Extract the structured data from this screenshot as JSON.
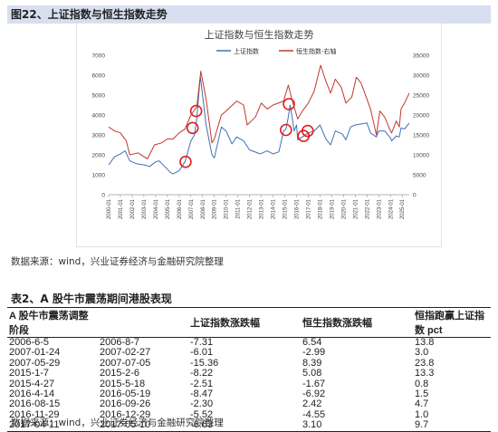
{
  "figure": {
    "title": "图22、上证指数与恒生指数走势"
  },
  "source1": "数据来源：wind，兴业证券经济与金融研究院整理",
  "table": {
    "title": "表2、A 股牛市震荡期间港股表现",
    "headers": [
      "A 股牛市震荡调整阶段",
      "",
      "上证指数涨跌幅",
      "恒生指数涨跌幅",
      "恒指跑赢上证指数  pct"
    ],
    "rows": [
      [
        "2006-6-5",
        "2006-8-7",
        "-7.31",
        "6.54",
        "13.8"
      ],
      [
        "2007-01-24",
        "2007-02-27",
        "-6.01",
        "-2.99",
        "3.0"
      ],
      [
        "2007-05-29",
        "2007-07-05",
        "-15.36",
        "8.39",
        "23.8"
      ],
      [
        "2015-1-7",
        "2015-2-6",
        "-8.22",
        "5.08",
        "13.3"
      ],
      [
        "2015-4-27",
        "2015-5-18",
        "-2.51",
        "-1.67",
        "0.8"
      ],
      [
        "2016-4-14",
        "2016-05-19",
        "-8.47",
        "-6.92",
        "1.5"
      ],
      [
        "2016-08-15",
        "2016-09-26",
        "-2.30",
        "2.42",
        "4.7"
      ],
      [
        "2016-11-29",
        "2016-12-29",
        "-5.52",
        "-4.55",
        "1.0"
      ],
      [
        "2017-04-11",
        "2017-05-10",
        "-6.63",
        "3.10",
        "9.7"
      ]
    ]
  },
  "source2": "数据来源：wind，兴业证券经济与金融研究院整理",
  "colors": {
    "sse": "#3f6fb5",
    "hsi": "#c0392b",
    "circle": "#e02020"
  },
  "chart_data": {
    "type": "line",
    "title": "上证指数与恒生指数走势",
    "legend": [
      "上证指数",
      "恒生指数-右轴"
    ],
    "legend_placement": "top-center",
    "grid": false,
    "x_ticks": [
      "2000-01",
      "2001-01",
      "2002-01",
      "2003-01",
      "2004-01",
      "2005-01",
      "2006-01",
      "2007-01",
      "2008-01",
      "2009-01",
      "2010-01",
      "2011-01",
      "2012-01",
      "2013-01",
      "2014-01",
      "2015-01",
      "2016-01",
      "2017-01",
      "2018-01",
      "2019-01",
      "2020-01",
      "2021-01",
      "2022-01",
      "2023-01",
      "2024-01",
      "2025-01"
    ],
    "y_left_ticks": [
      "0",
      "1000",
      "2000",
      "3000",
      "4000",
      "5000",
      "6000",
      "7000"
    ],
    "y_right_ticks": [
      "0",
      "5000",
      "10000",
      "15000",
      "20000",
      "25000",
      "30000",
      "35000"
    ],
    "ylim_left": [
      0,
      7000
    ],
    "ylim_right": [
      0,
      35000
    ],
    "series": [
      {
        "name": "上证指数",
        "axis": "left",
        "x": [
          2000.0,
          2000.5,
          2001.0,
          2001.4,
          2001.8,
          2002.4,
          2003.0,
          2003.5,
          2004.0,
          2004.3,
          2004.8,
          2005.3,
          2005.5,
          2006.0,
          2006.5,
          2007.0,
          2007.3,
          2007.5,
          2007.8,
          2008.3,
          2008.8,
          2009.0,
          2009.6,
          2010.0,
          2010.5,
          2010.9,
          2011.5,
          2012.0,
          2012.9,
          2013.5,
          2014.0,
          2014.5,
          2014.9,
          2015.1,
          2015.3,
          2015.45,
          2015.6,
          2015.8,
          2016.0,
          2016.1,
          2016.5,
          2017.0,
          2017.5,
          2018.0,
          2018.5,
          2018.9,
          2019.3,
          2019.9,
          2020.2,
          2020.6,
          2021.0,
          2021.5,
          2022.0,
          2022.3,
          2022.8,
          2023.0,
          2023.5,
          2024.0,
          2024.1,
          2024.5,
          2024.75,
          2024.9,
          2025.2,
          2025.6
        ],
        "y": [
          1500,
          1900,
          2050,
          2200,
          1700,
          1550,
          1500,
          1420,
          1650,
          1700,
          1400,
          1100,
          1050,
          1200,
          1650,
          2700,
          3000,
          3800,
          5950,
          3500,
          2000,
          1850,
          3400,
          3200,
          2550,
          2900,
          2700,
          2250,
          2050,
          2200,
          2050,
          2150,
          3200,
          3300,
          3900,
          4500,
          4000,
          3200,
          3500,
          2750,
          2900,
          3100,
          3200,
          3500,
          2800,
          2500,
          3200,
          3050,
          2750,
          3400,
          3500,
          3550,
          3600,
          3100,
          2900,
          3200,
          3200,
          2850,
          2700,
          2950,
          2900,
          3350,
          3300,
          3600
        ]
      },
      {
        "name": "恒生指数-右轴",
        "axis": "right",
        "x": [
          2000.0,
          2000.5,
          2001.0,
          2001.5,
          2001.8,
          2002.5,
          2003.3,
          2003.9,
          2004.5,
          2005.0,
          2005.5,
          2006.0,
          2006.5,
          2007.0,
          2007.5,
          2007.85,
          2008.3,
          2008.8,
          2009.0,
          2009.6,
          2010.0,
          2010.9,
          2011.5,
          2011.8,
          2012.5,
          2013.0,
          2013.5,
          2014.0,
          2014.9,
          2015.3,
          2015.6,
          2016.1,
          2016.5,
          2017.0,
          2017.5,
          2018.05,
          2018.5,
          2018.9,
          2019.3,
          2019.8,
          2020.2,
          2020.7,
          2021.1,
          2021.5,
          2022.0,
          2022.3,
          2022.8,
          2023.1,
          2023.5,
          2024.0,
          2024.1,
          2024.5,
          2024.75,
          2024.9,
          2025.2,
          2025.6
        ],
        "y": [
          17000,
          16000,
          15500,
          13500,
          10000,
          10500,
          9000,
          12500,
          13000,
          14000,
          14000,
          15500,
          16500,
          20000,
          22000,
          31000,
          24000,
          13000,
          14000,
          20000,
          21000,
          23500,
          22500,
          17500,
          19500,
          23000,
          21500,
          22500,
          23500,
          27500,
          24000,
          19000,
          21000,
          23000,
          26000,
          32500,
          28500,
          25500,
          29000,
          27000,
          23000,
          24500,
          29500,
          28000,
          24000,
          21500,
          15000,
          21000,
          19500,
          16000,
          15500,
          18500,
          17000,
          21500,
          23000,
          25500
        ]
      }
    ],
    "annotations": [
      {
        "label": "circle",
        "x": 2006.55,
        "y_left": 1650
      },
      {
        "label": "circle",
        "x": 2007.15,
        "y_left": 3350
      },
      {
        "label": "circle",
        "x": 2007.45,
        "y_left": 4200
      },
      {
        "label": "circle",
        "x": 2015.1,
        "y_left": 3250
      },
      {
        "label": "circle",
        "x": 2015.35,
        "y_left": 4550
      },
      {
        "label": "circle",
        "x": 2016.6,
        "y_left": 2950
      },
      {
        "label": "circle",
        "x": 2016.95,
        "y_left": 3200
      }
    ]
  }
}
